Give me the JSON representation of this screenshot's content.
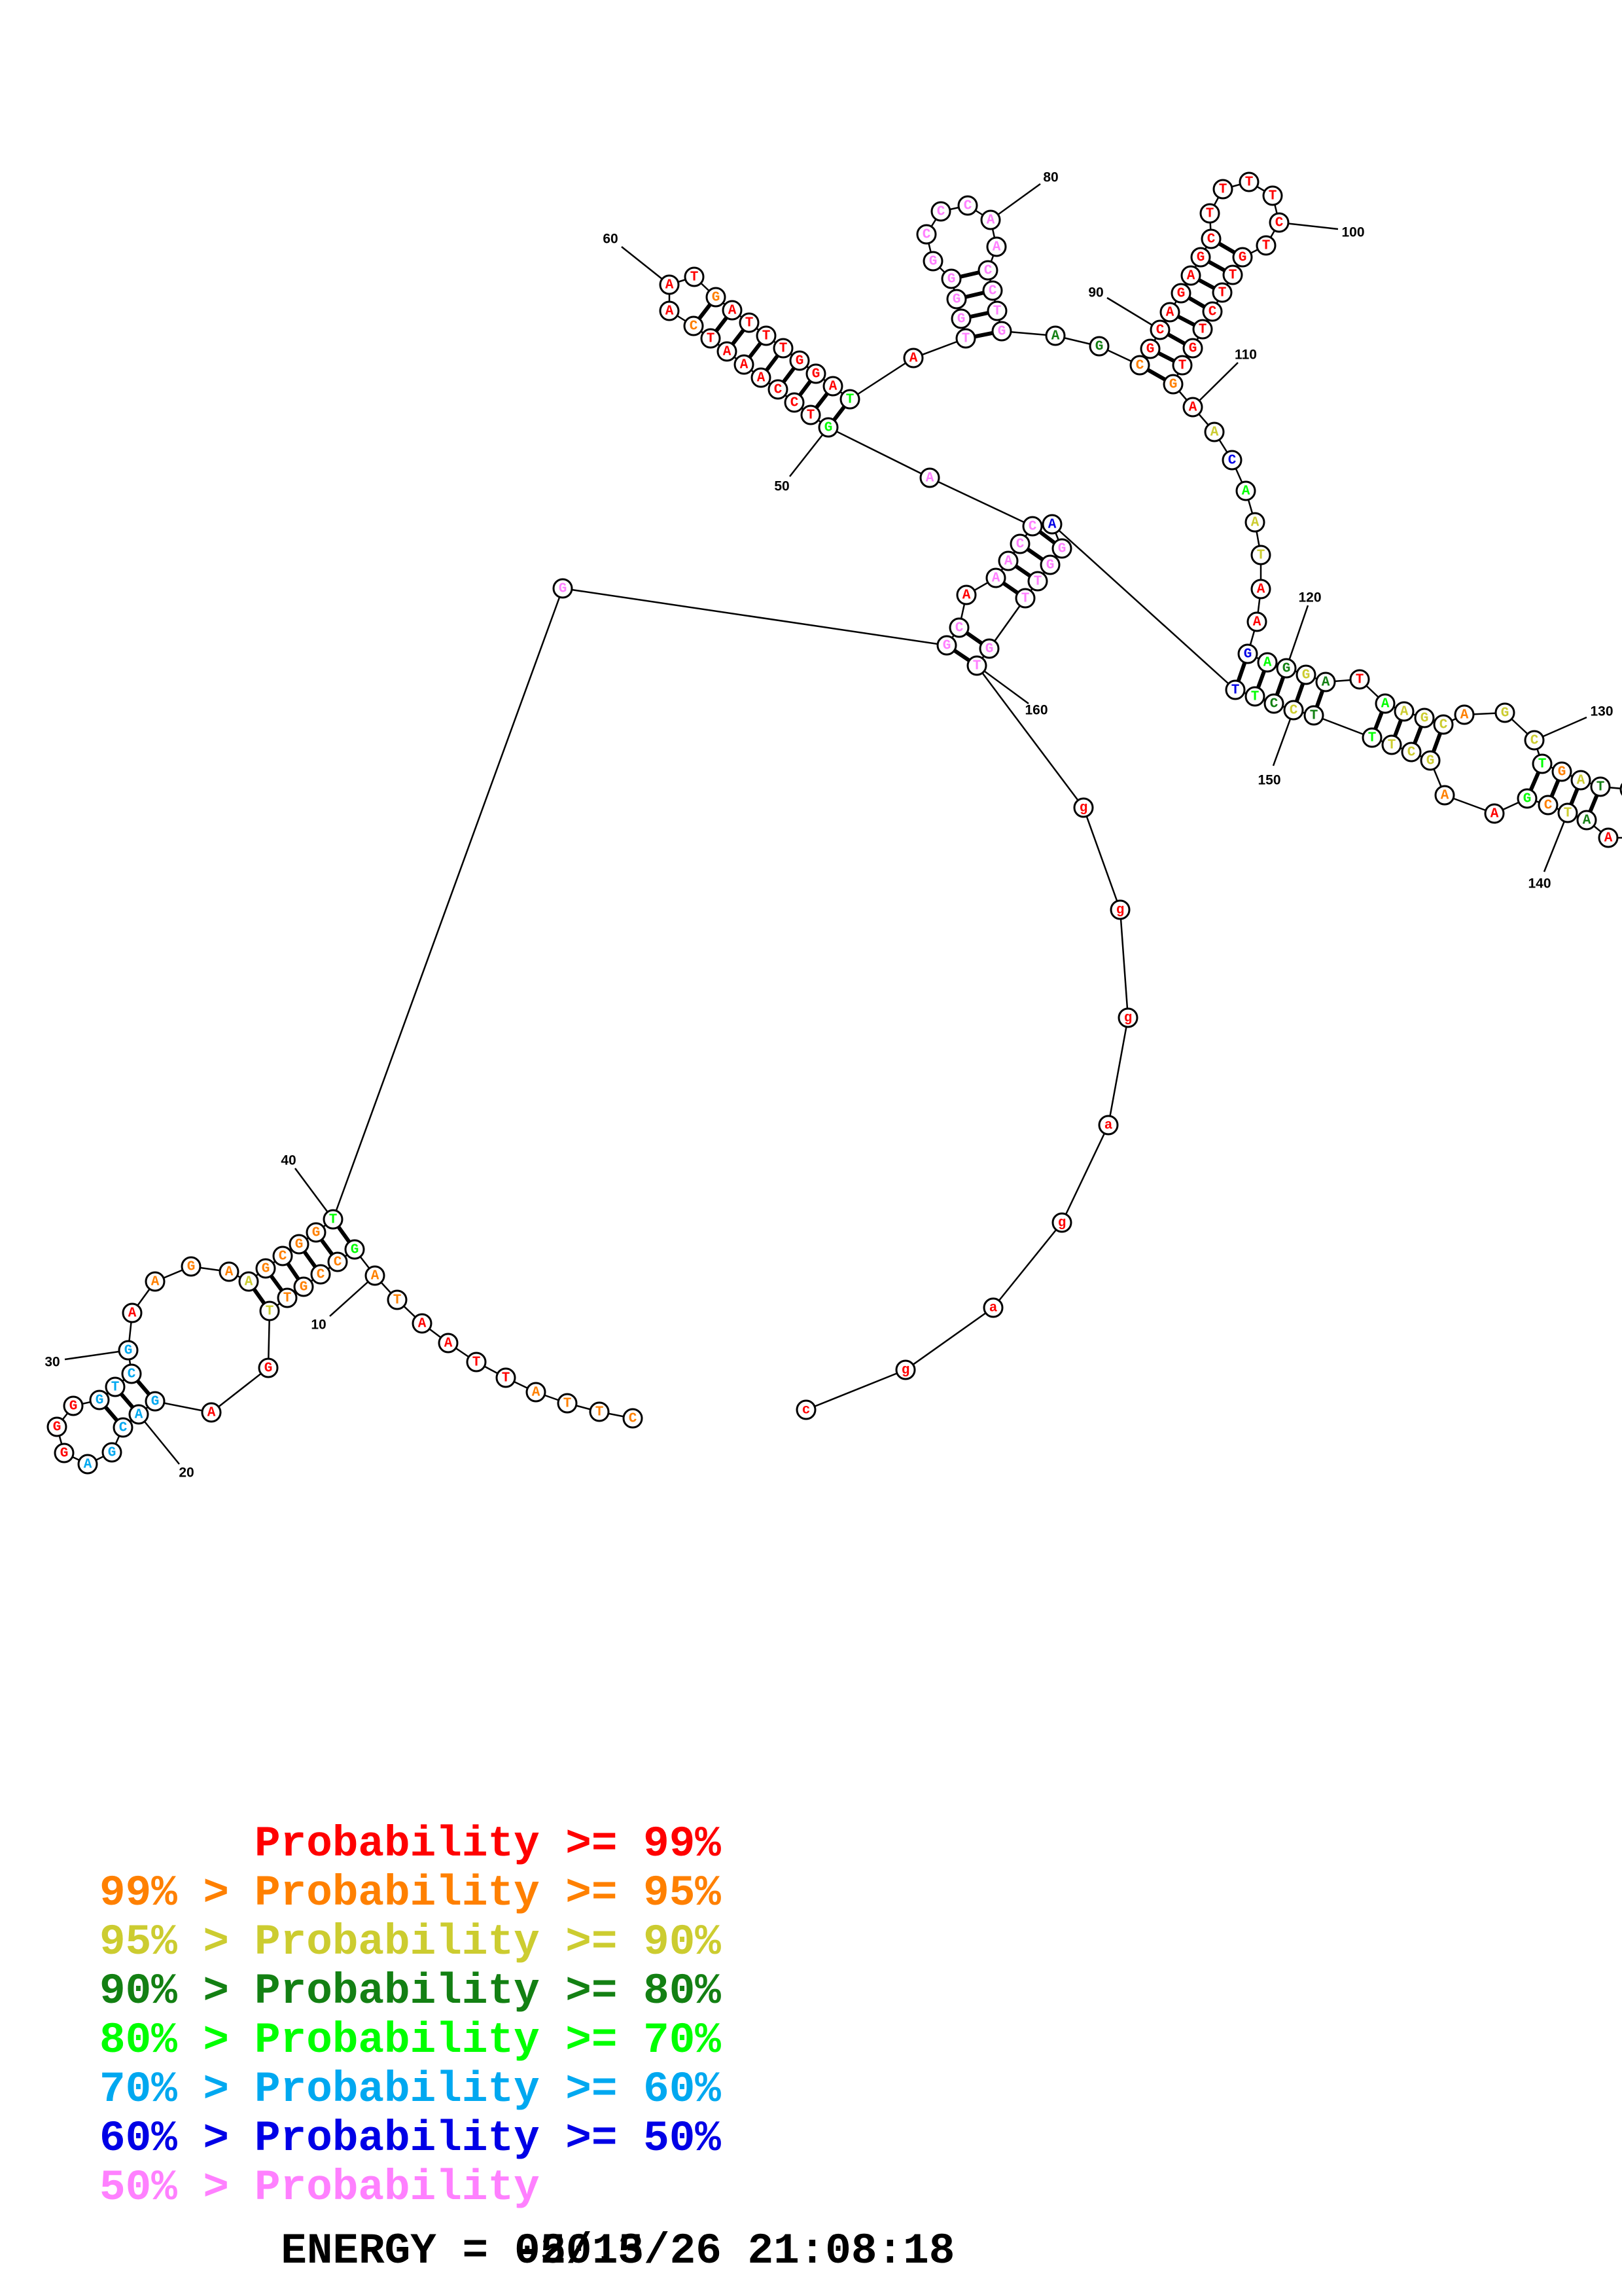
{
  "colors": {
    "r": "#ff0000",
    "o": "#ff8000",
    "y": "#cccc30",
    "d": "#138013",
    "g": "#00ff00",
    "c": "#00a8f0",
    "b": "#0000e6",
    "p": "#ff80ff"
  },
  "nucleotides": [
    {
      "n": 1,
      "base": "C",
      "prob": "o"
    },
    {
      "n": 2,
      "base": "T",
      "prob": "o"
    },
    {
      "n": 3,
      "base": "T",
      "prob": "o"
    },
    {
      "n": 4,
      "base": "A",
      "prob": "o"
    },
    {
      "n": 5,
      "base": "T",
      "prob": "r"
    },
    {
      "n": 6,
      "base": "T",
      "prob": "r"
    },
    {
      "n": 7,
      "base": "A",
      "prob": "r"
    },
    {
      "n": 8,
      "base": "A",
      "prob": "r"
    },
    {
      "n": 9,
      "base": "T",
      "prob": "o"
    },
    {
      "n": 10,
      "base": "A",
      "prob": "o"
    },
    {
      "n": 11,
      "base": "G",
      "prob": "g"
    },
    {
      "n": 12,
      "base": "C",
      "prob": "o"
    },
    {
      "n": 13,
      "base": "C",
      "prob": "o"
    },
    {
      "n": 14,
      "base": "G",
      "prob": "o"
    },
    {
      "n": 15,
      "base": "T",
      "prob": "o"
    },
    {
      "n": 16,
      "base": "T",
      "prob": "y"
    },
    {
      "n": 17,
      "base": "G",
      "prob": "r"
    },
    {
      "n": 18,
      "base": "A",
      "prob": "r"
    },
    {
      "n": 19,
      "base": "G",
      "prob": "c"
    },
    {
      "n": 20,
      "base": "A",
      "prob": "c"
    },
    {
      "n": 21,
      "base": "C",
      "prob": "c"
    },
    {
      "n": 22,
      "base": "G",
      "prob": "c"
    },
    {
      "n": 23,
      "base": "A",
      "prob": "c"
    },
    {
      "n": 24,
      "base": "G",
      "prob": "r"
    },
    {
      "n": 25,
      "base": "G",
      "prob": "r"
    },
    {
      "n": 26,
      "base": "G",
      "prob": "r"
    },
    {
      "n": 27,
      "base": "G",
      "prob": "c"
    },
    {
      "n": 28,
      "base": "T",
      "prob": "c"
    },
    {
      "n": 29,
      "base": "C",
      "prob": "c"
    },
    {
      "n": 30,
      "base": "G",
      "prob": "c"
    },
    {
      "n": 31,
      "base": "A",
      "prob": "r"
    },
    {
      "n": 32,
      "base": "A",
      "prob": "o"
    },
    {
      "n": 33,
      "base": "G",
      "prob": "o"
    },
    {
      "n": 34,
      "base": "A",
      "prob": "o"
    },
    {
      "n": 35,
      "base": "A",
      "prob": "y"
    },
    {
      "n": 36,
      "base": "G",
      "prob": "o"
    },
    {
      "n": 37,
      "base": "C",
      "prob": "o"
    },
    {
      "n": 38,
      "base": "G",
      "prob": "o"
    },
    {
      "n": 39,
      "base": "G",
      "prob": "o"
    },
    {
      "n": 40,
      "base": "T",
      "prob": "g"
    },
    {
      "n": 41,
      "base": "G",
      "prob": "p"
    },
    {
      "n": 42,
      "base": "G",
      "prob": "p"
    },
    {
      "n": 43,
      "base": "C",
      "prob": "p"
    },
    {
      "n": 44,
      "base": "A",
      "prob": "r"
    },
    {
      "n": 45,
      "base": "A",
      "prob": "p"
    },
    {
      "n": 46,
      "base": "A",
      "prob": "p"
    },
    {
      "n": 47,
      "base": "C",
      "prob": "p"
    },
    {
      "n": 48,
      "base": "C",
      "prob": "p"
    },
    {
      "n": 49,
      "base": "A",
      "prob": "p"
    },
    {
      "n": 50,
      "base": "G",
      "prob": "g"
    },
    {
      "n": 51,
      "base": "T",
      "prob": "r"
    },
    {
      "n": 52,
      "base": "C",
      "prob": "r"
    },
    {
      "n": 53,
      "base": "C",
      "prob": "r"
    },
    {
      "n": 54,
      "base": "A",
      "prob": "r"
    },
    {
      "n": 55,
      "base": "A",
      "prob": "r"
    },
    {
      "n": 56,
      "base": "A",
      "prob": "r"
    },
    {
      "n": 57,
      "base": "T",
      "prob": "r"
    },
    {
      "n": 58,
      "base": "C",
      "prob": "o"
    },
    {
      "n": 59,
      "base": "A",
      "prob": "r"
    },
    {
      "n": 60,
      "base": "A",
      "prob": "r"
    },
    {
      "n": 61,
      "base": "T",
      "prob": "r"
    },
    {
      "n": 62,
      "base": "G",
      "prob": "o"
    },
    {
      "n": 63,
      "base": "A",
      "prob": "r"
    },
    {
      "n": 64,
      "base": "T",
      "prob": "r"
    },
    {
      "n": 65,
      "base": "T",
      "prob": "r"
    },
    {
      "n": 66,
      "base": "T",
      "prob": "r"
    },
    {
      "n": 67,
      "base": "G",
      "prob": "r"
    },
    {
      "n": 68,
      "base": "G",
      "prob": "r"
    },
    {
      "n": 69,
      "base": "A",
      "prob": "r"
    },
    {
      "n": 70,
      "base": "T",
      "prob": "g"
    },
    {
      "n": 71,
      "base": "A",
      "prob": "r"
    },
    {
      "n": 72,
      "base": "T",
      "prob": "p"
    },
    {
      "n": 73,
      "base": "G",
      "prob": "p"
    },
    {
      "n": 74,
      "base": "G",
      "prob": "p"
    },
    {
      "n": 75,
      "base": "G",
      "prob": "p"
    },
    {
      "n": 76,
      "base": "G",
      "prob": "p"
    },
    {
      "n": 77,
      "base": "C",
      "prob": "p"
    },
    {
      "n": 78,
      "base": "C",
      "prob": "p"
    },
    {
      "n": 79,
      "base": "C",
      "prob": "p"
    },
    {
      "n": 80,
      "base": "A",
      "prob": "p"
    },
    {
      "n": 81,
      "base": "A",
      "prob": "p"
    },
    {
      "n": 82,
      "base": "C",
      "prob": "p"
    },
    {
      "n": 83,
      "base": "C",
      "prob": "p"
    },
    {
      "n": 84,
      "base": "T",
      "prob": "p"
    },
    {
      "n": 85,
      "base": "G",
      "prob": "p"
    },
    {
      "n": 86,
      "base": "A",
      "prob": "d"
    },
    {
      "n": 87,
      "base": "G",
      "prob": "d"
    },
    {
      "n": 88,
      "base": "C",
      "prob": "o"
    },
    {
      "n": 89,
      "base": "G",
      "prob": "r"
    },
    {
      "n": 90,
      "base": "C",
      "prob": "r"
    },
    {
      "n": 91,
      "base": "A",
      "prob": "r"
    },
    {
      "n": 92,
      "base": "G",
      "prob": "r"
    },
    {
      "n": 93,
      "base": "A",
      "prob": "r"
    },
    {
      "n": 94,
      "base": "G",
      "prob": "r"
    },
    {
      "n": 95,
      "base": "C",
      "prob": "r"
    },
    {
      "n": 96,
      "base": "T",
      "prob": "r"
    },
    {
      "n": 97,
      "base": "T",
      "prob": "r"
    },
    {
      "n": 98,
      "base": "T",
      "prob": "r"
    },
    {
      "n": 99,
      "base": "T",
      "prob": "r"
    },
    {
      "n": 100,
      "base": "C",
      "prob": "r"
    },
    {
      "n": 101,
      "base": "T",
      "prob": "r"
    },
    {
      "n": 102,
      "base": "G",
      "prob": "r"
    },
    {
      "n": 103,
      "base": "T",
      "prob": "r"
    },
    {
      "n": 104,
      "base": "T",
      "prob": "r"
    },
    {
      "n": 105,
      "base": "C",
      "prob": "r"
    },
    {
      "n": 106,
      "base": "T",
      "prob": "r"
    },
    {
      "n": 107,
      "base": "G",
      "prob": "r"
    },
    {
      "n": 108,
      "base": "T",
      "prob": "r"
    },
    {
      "n": 109,
      "base": "G",
      "prob": "o"
    },
    {
      "n": 110,
      "base": "A",
      "prob": "r"
    },
    {
      "n": 111,
      "base": "A",
      "prob": "y"
    },
    {
      "n": 112,
      "base": "C",
      "prob": "b"
    },
    {
      "n": 113,
      "base": "A",
      "prob": "g"
    },
    {
      "n": 114,
      "base": "A",
      "prob": "y"
    },
    {
      "n": 115,
      "base": "T",
      "prob": "y"
    },
    {
      "n": 116,
      "base": "A",
      "prob": "r"
    },
    {
      "n": 117,
      "base": "A",
      "prob": "r"
    },
    {
      "n": 118,
      "base": "G",
      "prob": "b"
    },
    {
      "n": 119,
      "base": "A",
      "prob": "g"
    },
    {
      "n": 120,
      "base": "G",
      "prob": "d"
    },
    {
      "n": 121,
      "base": "G",
      "prob": "y"
    },
    {
      "n": 122,
      "base": "A",
      "prob": "d"
    },
    {
      "n": 123,
      "base": "T",
      "prob": "r"
    },
    {
      "n": 124,
      "base": "A",
      "prob": "g"
    },
    {
      "n": 125,
      "base": "A",
      "prob": "y"
    },
    {
      "n": 126,
      "base": "G",
      "prob": "y"
    },
    {
      "n": 127,
      "base": "C",
      "prob": "y"
    },
    {
      "n": 128,
      "base": "A",
      "prob": "o"
    },
    {
      "n": 129,
      "base": "G",
      "prob": "y"
    },
    {
      "n": 130,
      "base": "C",
      "prob": "y"
    },
    {
      "n": 131,
      "base": "T",
      "prob": "g"
    },
    {
      "n": 132,
      "base": "G",
      "prob": "o"
    },
    {
      "n": 133,
      "base": "A",
      "prob": "y"
    },
    {
      "n": 134,
      "base": "T",
      "prob": "d"
    },
    {
      "n": 138,
      "base": "A",
      "prob": "r"
    },
    {
      "n": 139,
      "base": "A",
      "prob": "d"
    },
    {
      "n": 140,
      "base": "T",
      "prob": "y"
    },
    {
      "n": 141,
      "base": "C",
      "prob": "o"
    },
    {
      "n": 142,
      "base": "G",
      "prob": "g"
    },
    {
      "n": 143,
      "base": "A",
      "prob": "r"
    },
    {
      "n": 144,
      "base": "A",
      "prob": "o"
    },
    {
      "n": 145,
      "base": "G",
      "prob": "y"
    },
    {
      "n": 146,
      "base": "C",
      "prob": "y"
    },
    {
      "n": 147,
      "base": "T",
      "prob": "y"
    },
    {
      "n": 148,
      "base": "T",
      "prob": "g"
    },
    {
      "n": 149,
      "base": "T",
      "prob": "d"
    },
    {
      "n": 150,
      "base": "C",
      "prob": "y"
    },
    {
      "n": 151,
      "base": "C",
      "prob": "d"
    },
    {
      "n": 152,
      "base": "T",
      "prob": "g"
    },
    {
      "n": 153,
      "base": "T",
      "prob": "b"
    },
    {
      "n": 154,
      "base": "A",
      "prob": "b"
    },
    {
      "n": 155,
      "base": "G",
      "prob": "p"
    },
    {
      "n": 156,
      "base": "G",
      "prob": "p"
    },
    {
      "n": 157,
      "base": "T",
      "prob": "p"
    },
    {
      "n": 158,
      "base": "T",
      "prob": "p"
    },
    {
      "n": 159,
      "base": "G",
      "prob": "p"
    },
    {
      "n": 160,
      "base": "T",
      "prob": "p"
    },
    {
      "n": 161,
      "base": "g",
      "prob": "r"
    },
    {
      "n": 162,
      "base": "g",
      "prob": "r"
    },
    {
      "n": 163,
      "base": "g",
      "prob": "r"
    },
    {
      "n": 164,
      "base": "a",
      "prob": "r"
    },
    {
      "n": 165,
      "base": "g",
      "prob": "r"
    },
    {
      "n": 166,
      "base": "a",
      "prob": "r"
    },
    {
      "n": 167,
      "base": "g",
      "prob": "r"
    },
    {
      "n": 168,
      "base": "c",
      "prob": "r"
    }
  ],
  "pairs": [
    [
      11,
      40
    ],
    [
      12,
      39
    ],
    [
      13,
      38
    ],
    [
      14,
      37
    ],
    [
      15,
      36
    ],
    [
      16,
      35
    ],
    [
      19,
      29
    ],
    [
      20,
      28
    ],
    [
      21,
      27
    ],
    [
      42,
      160
    ],
    [
      43,
      159
    ],
    [
      45,
      158
    ],
    [
      46,
      157
    ],
    [
      47,
      156
    ],
    [
      48,
      155
    ],
    [
      50,
      70
    ],
    [
      51,
      69
    ],
    [
      52,
      68
    ],
    [
      53,
      67
    ],
    [
      54,
      66
    ],
    [
      55,
      65
    ],
    [
      56,
      64
    ],
    [
      57,
      63
    ],
    [
      58,
      62
    ],
    [
      72,
      85
    ],
    [
      73,
      84
    ],
    [
      74,
      83
    ],
    [
      75,
      82
    ],
    [
      88,
      109
    ],
    [
      89,
      108
    ],
    [
      90,
      107
    ],
    [
      91,
      106
    ],
    [
      92,
      105
    ],
    [
      93,
      104
    ],
    [
      94,
      103
    ],
    [
      95,
      102
    ],
    [
      118,
      153
    ],
    [
      119,
      152
    ],
    [
      120,
      151
    ],
    [
      121,
      150
    ],
    [
      122,
      149
    ],
    [
      124,
      148
    ],
    [
      125,
      147
    ],
    [
      126,
      146
    ],
    [
      127,
      145
    ],
    [
      131,
      142
    ],
    [
      132,
      141
    ],
    [
      133,
      140
    ],
    [
      134,
      139
    ]
  ],
  "position_labels": [
    "10",
    "20",
    "30",
    "40",
    "50",
    "60",
    "80",
    "90",
    "100",
    "110",
    "120",
    "130",
    "140",
    "150",
    "160"
  ],
  "legend": [
    {
      "prefix": "",
      "text": "Probability >= 99%",
      "prob": "r"
    },
    {
      "prefix": "99% >",
      "text": "Probability >= 95%",
      "prob": "o"
    },
    {
      "prefix": "95% >",
      "text": "Probability >= 90%",
      "prob": "y"
    },
    {
      "prefix": "90% >",
      "text": "Probability >= 80%",
      "prob": "d"
    },
    {
      "prefix": "80% >",
      "text": "Probability >= 70%",
      "prob": "g"
    },
    {
      "prefix": "70% >",
      "text": "Probability >= 60%",
      "prob": "c"
    },
    {
      "prefix": "60% >",
      "text": "Probability >= 50%",
      "prob": "b"
    },
    {
      "prefix": "50% >",
      "text": "Probability",
      "prob": "p"
    }
  ],
  "footer": {
    "energy": "ENERGY = -50.5",
    "timestamp": "02/13/26 21:08:18"
  }
}
